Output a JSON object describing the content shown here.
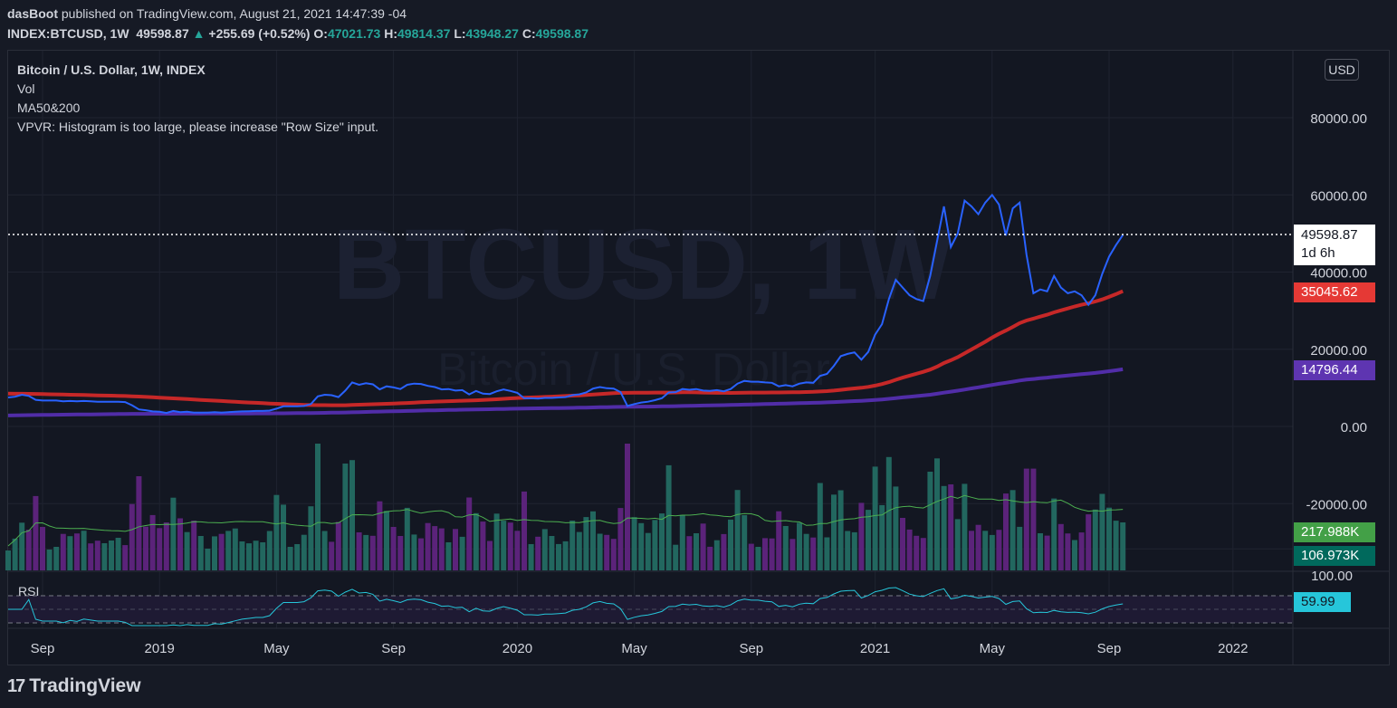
{
  "header": {
    "author": "dasBoot",
    "published_text": "published on TradingView.com, August 21, 2021 14:47:39 -04",
    "symbol": "INDEX:BTCUSD, 1W",
    "last": "49598.87",
    "change": "+255.69 (+0.52%)",
    "o_label": "O:",
    "o": "47021.73",
    "h_label": "H:",
    "h": "49814.37",
    "l_label": "L:",
    "l": "43948.27",
    "c_label": "C:",
    "c": "49598.87"
  },
  "legend": {
    "title": "Bitcoin / U.S. Dollar, 1W, INDEX",
    "vol": "Vol",
    "ma": "MA50&200",
    "vpvr": "VPVR: Histogram is too large, please increase \"Row Size\" input."
  },
  "watermark": {
    "symbol": "BTCUSD, 1W",
    "name": "Bitcoin / U.S. Dollar"
  },
  "currency_button": "USD",
  "price_labels": {
    "last": {
      "value": "49598.87",
      "countdown": "1d 6h"
    },
    "ma50": "35045.62",
    "ma200": "14796.44",
    "vol_ma": "217.988K",
    "vol": "106.973K",
    "rsi": "59.99"
  },
  "rsi_label": "RSI",
  "branding": "TradingView",
  "colors": {
    "price": "#2962ff",
    "ma50": "#c62828",
    "ma200": "#512da8",
    "vol_up": "#22675f",
    "vol_down": "#5b237a",
    "vol_ma": "#4caf50",
    "rsi": "#26c6da"
  },
  "chart_data": {
    "type": "line",
    "title": "Bitcoin / U.S. Dollar, 1W, INDEX",
    "y_axis_ticks": [
      "80000.00",
      "60000.00",
      "40000.00",
      "20000.00",
      "0.00",
      "-20000.00"
    ],
    "ylim": [
      -37000,
      100000
    ],
    "rsi_axis_ticks": [
      "100.00"
    ],
    "x_axis_ticks": [
      "Sep",
      "2019",
      "May",
      "Sep",
      "2020",
      "May",
      "Sep",
      "2021",
      "May",
      "Sep",
      "2022"
    ],
    "x_tick_week_index": [
      5,
      22,
      39,
      56,
      74,
      91,
      108,
      126,
      143,
      160,
      178
    ],
    "series": [
      {
        "name": "BTCUSD Close",
        "values": [
          7500,
          7700,
          8200,
          7900,
          6900,
          6700,
          6700,
          6700,
          6500,
          6600,
          6500,
          6600,
          6500,
          6400,
          6400,
          6400,
          6400,
          6300,
          5500,
          4400,
          4200,
          3900,
          3800,
          3500,
          4000,
          3700,
          3800,
          3600,
          3600,
          3600,
          3700,
          3600,
          3700,
          3800,
          3900,
          3950,
          4000,
          4000,
          4100,
          4600,
          5200,
          5200,
          5200,
          5300,
          5800,
          7800,
          8200,
          8100,
          7600,
          9300,
          11400,
          10800,
          11200,
          10900,
          9600,
          10400,
          10100,
          9700,
          10800,
          11100,
          11000,
          10500,
          10200,
          9600,
          9700,
          9300,
          9400,
          8300,
          9200,
          8500,
          8400,
          9100,
          9600,
          9200,
          8700,
          7300,
          7300,
          7200,
          7400,
          7400,
          7500,
          7600,
          8100,
          8300,
          8800,
          9800,
          10200,
          9900,
          9800,
          8900,
          5300,
          5800,
          6200,
          6400,
          6800,
          7300,
          8800,
          8900,
          9700,
          9500,
          9700,
          9300,
          9200,
          9400,
          9100,
          9700,
          11100,
          11800,
          11600,
          11600,
          11400,
          11300,
          10400,
          10700,
          10400,
          11100,
          11400,
          11300,
          13100,
          13600,
          15700,
          18200,
          18800,
          19200,
          17300,
          19300,
          23800,
          26500,
          33000,
          38000,
          36000,
          34000,
          33000,
          32500,
          39000,
          48000,
          57000,
          46500,
          50000,
          58500,
          57000,
          55000,
          58000,
          60000,
          57500,
          49500,
          56500,
          58000,
          44500,
          34500,
          35500,
          35000,
          39000,
          36000,
          34500,
          35000,
          34000,
          31500,
          34000,
          39500,
          44000,
          47000,
          49599
        ]
      },
      {
        "name": "MA50",
        "note": "red moving average",
        "last": 35045.62
      },
      {
        "name": "MA200",
        "note": "purple moving average",
        "last": 14796.44
      }
    ],
    "volume": {
      "last": 106973,
      "ma_last": 217988
    },
    "rsi": {
      "last": 59.99,
      "upper": 70,
      "lower": 30
    }
  }
}
